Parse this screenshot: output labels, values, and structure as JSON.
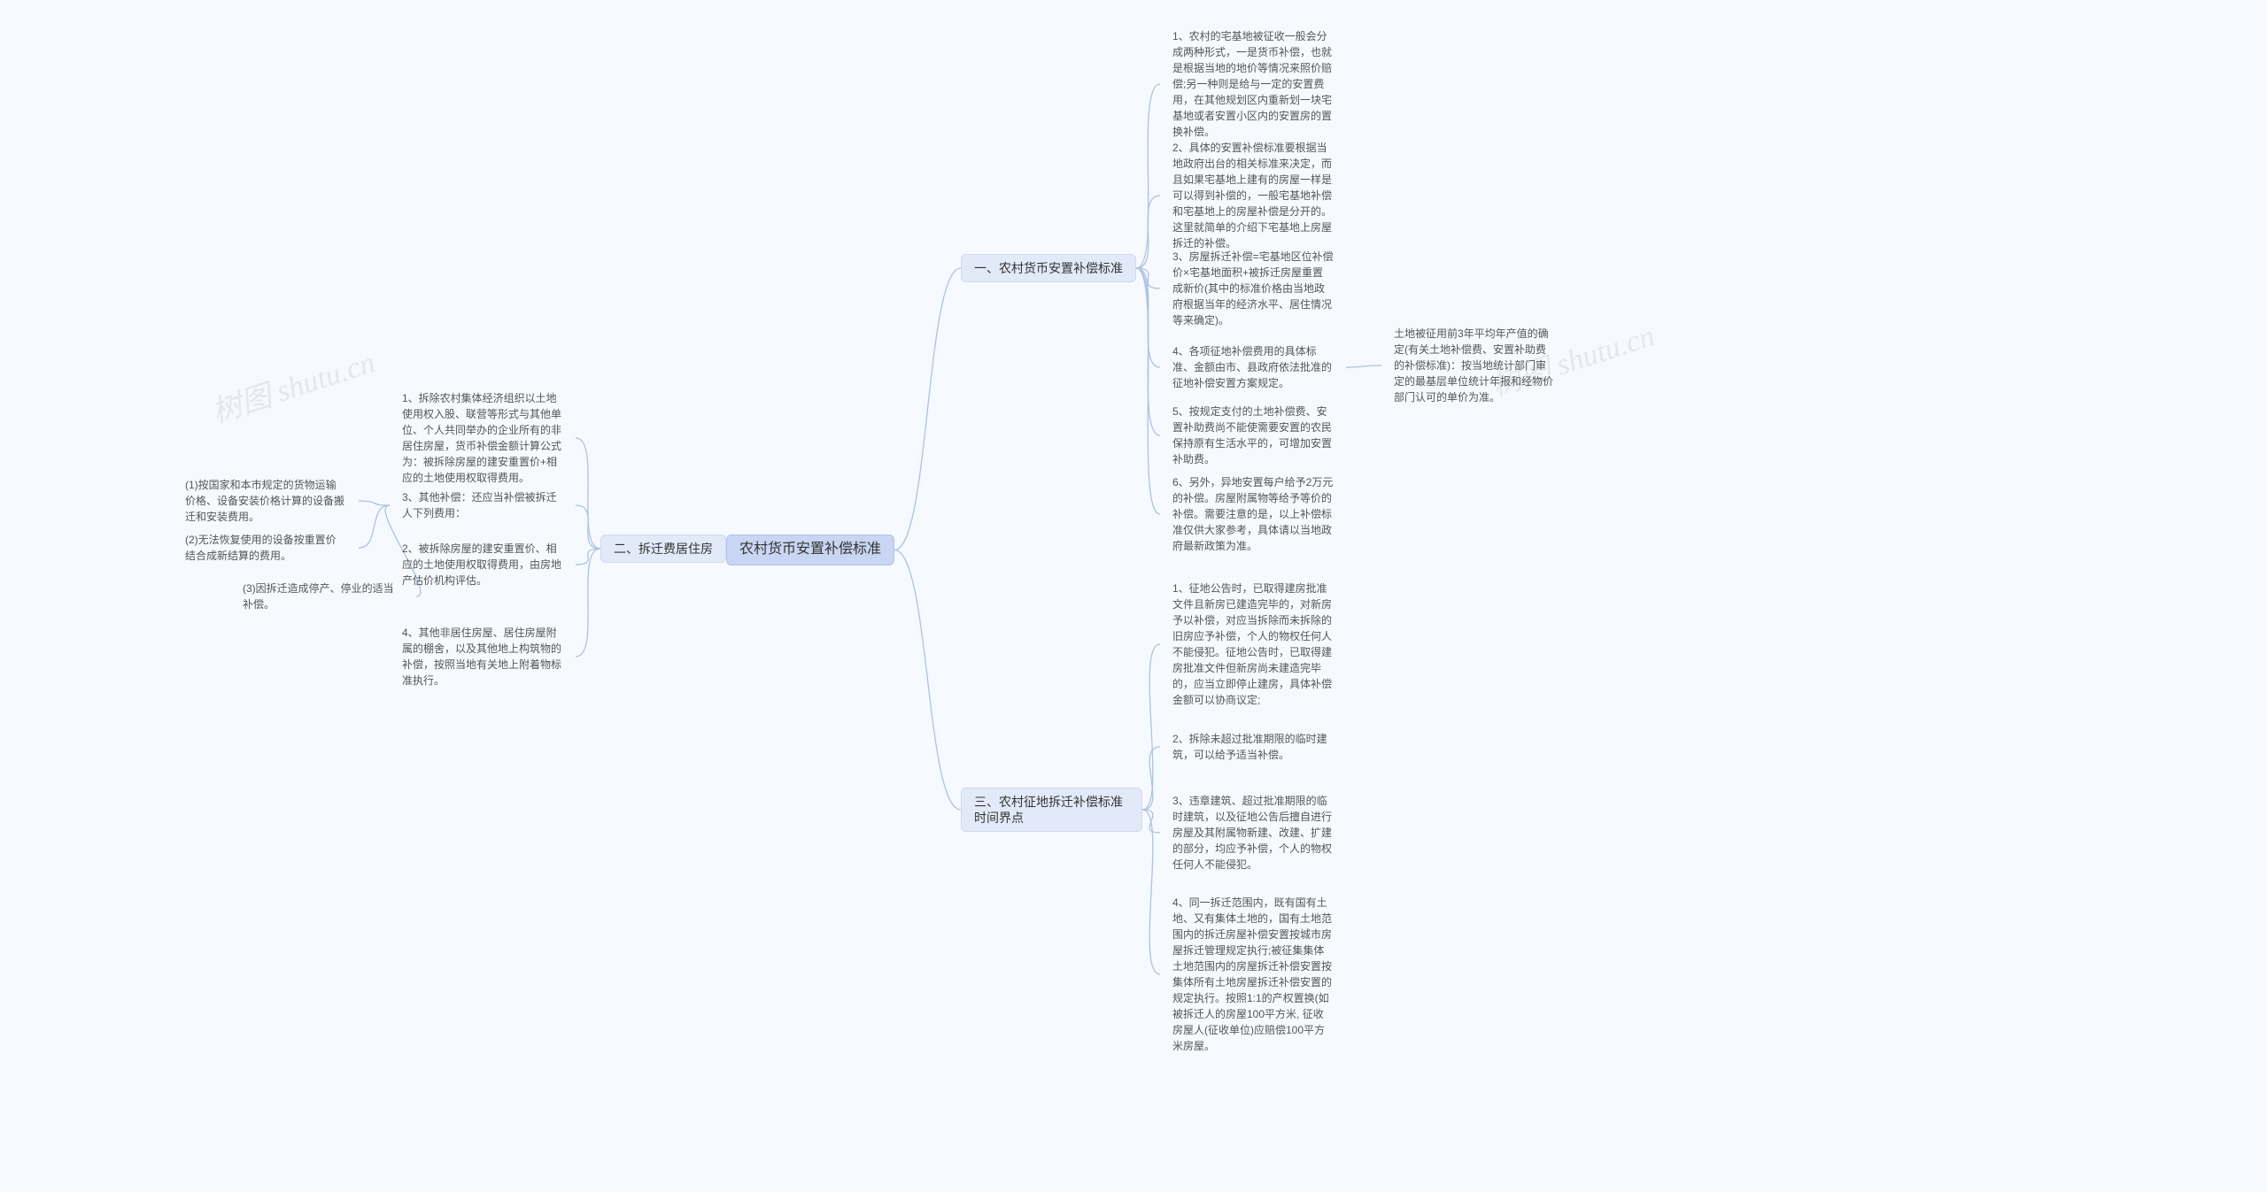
{
  "meta": {
    "bg": "#f6f9fd",
    "edge_color": "#adc2e3",
    "node_center_bg": "#c9d6f3",
    "node_l1_bg": "#e2e9f8",
    "text_color": "#555555",
    "watermark_text": "树图 shutu.cn",
    "watermark_color": "#e4e7eb"
  },
  "center": {
    "label": "农村货币安置补偿标准"
  },
  "branch1": {
    "label": "一、农村货币安置补偿标准",
    "items": [
      "1、农村的宅基地被征收一般会分成两种形式，一是货币补偿，也就是根据当地的地价等情况来照价赔偿;另一种则是给与一定的安置费用，在其他规划区内重新划一块宅基地或者安置小区内的安置房的置换补偿。",
      "2、具体的安置补偿标准要根据当地政府出台的相关标准来决定，而且如果宅基地上建有的房屋一样是可以得到补偿的，一般宅基地补偿和宅基地上的房屋补偿是分开的。这里就简单的介绍下宅基地上房屋拆迁的补偿。",
      "3、房屋拆迁补偿=宅基地区位补偿价×宅基地面积+被拆迁房屋重置成新价(其中的标准价格由当地政府根据当年的经济水平、居住情况等来确定)。",
      "4、各项征地补偿费用的具体标准、金额由市、县政府依法批准的征地补偿安置方案规定。",
      "5、按规定支付的土地补偿费、安置补助费尚不能使需要安置的农民保持原有生活水平的，可增加安置补助费。",
      "6、另外，异地安置每户给予2万元的补偿。房屋附属物等给予等价的补偿。需要注意的是，以上补偿标准仅供大家参考，具体请以当地政府最新政策为准。"
    ],
    "sub4": "土地被征用前3年平均年产值的确定(有关土地补偿费、安置补助费的补偿标准)：按当地统计部门审定的最基层单位统计年报和经物价部门认可的单价为准。"
  },
  "branch2": {
    "label": "二、拆迁费居住房",
    "items": [
      "1、拆除农村集体经济组织以土地使用权入股、联营等形式与其他单位、个人共同举办的企业所有的非居住房屋，货币补偿金额计算公式为：被拆除房屋的建安重置价+相应的土地使用权取得费用。",
      "2、被拆除房屋的建安重置价、相应的土地使用权取得费用，由房地产估价机构评估。",
      "3、其他补偿：还应当补偿被拆迁人下列费用：",
      "4、其他非居住房屋、居住房屋附属的棚舍，以及其他地上构筑物的补偿，按照当地有关地上附着物标准执行。"
    ],
    "sub3": [
      "(1)按国家和本市规定的货物运输价格、设备安装价格计算的设备搬迁和安装费用。",
      "(2)无法恢复使用的设备按重置价结合成新结算的费用。",
      "(3)因拆迁造成停产、停业的适当补偿。"
    ]
  },
  "branch3": {
    "label": "三、农村征地拆迁补偿标准时间界点",
    "items": [
      "1、征地公告时，已取得建房批准文件且新房已建造完毕的，对新房予以补偿，对应当拆除而未拆除的旧房应予补偿，个人的物权任何人不能侵犯。征地公告时，已取得建房批准文件但新房尚未建造完毕的，应当立即停止建房，具体补偿金额可以协商议定;",
      "2、拆除未超过批准期限的临时建筑，可以给予适当补偿。",
      "3、违章建筑、超过批准期限的临时建筑，以及征地公告后擅自进行房屋及其附属物新建、改建、扩建的部分，均应予补偿，个人的物权任何人不能侵犯。",
      "4、同一拆迁范围内，既有国有土地、又有集体土地的，国有土地范围内的拆迁房屋补偿安置按城市房屋拆迁管理规定执行;被征集集体土地范围内的房屋拆迁补偿安置按集体所有土地房屋拆迁补偿安置的规定执行。按照1:1的产权置换(如被拆迁人的房屋100平方米, 征收房屋人(征收单位)应赔偿100平方米房屋。"
    ]
  }
}
